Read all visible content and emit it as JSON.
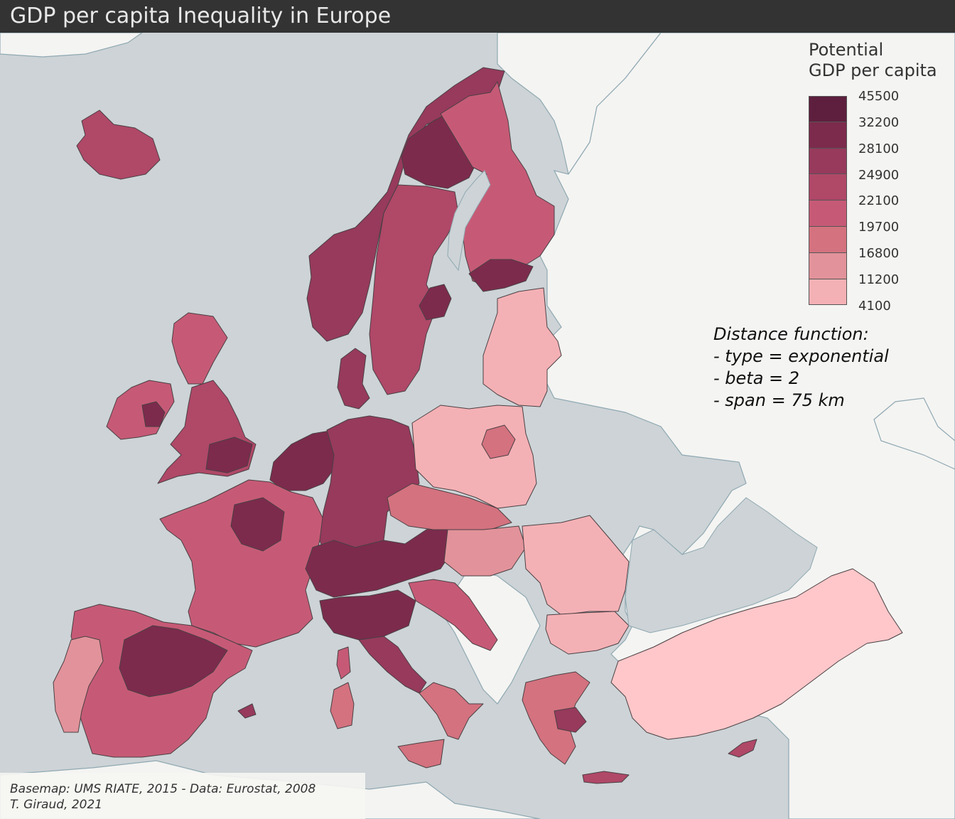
{
  "title": "GDP per capita Inequality in Europe",
  "legend": {
    "title_lines": [
      "Potential",
      "GDP per capita"
    ],
    "breaks": [
      "45500",
      "32200",
      "28100",
      "24900",
      "22100",
      "19700",
      "16800",
      "11200",
      "4100"
    ],
    "class_colors": [
      "#5e1f3e",
      "#7c2b4c",
      "#973a5c",
      "#b04868",
      "#c65a76",
      "#d4727f",
      "#e2929a",
      "#f4b1b5"
    ]
  },
  "colors": {
    "sea": "#cdd3d6",
    "land_no_data": "#f4f4f2",
    "coast": "#8fa8b2",
    "title_bar": "#333333",
    "border": "#4a4044"
  },
  "method_note": {
    "lines": [
      "Distance function:",
      "- type = exponential",
      "- beta = 2",
      "- span = 75 km"
    ]
  },
  "credits": {
    "lines": [
      "Basemap: UMS RIATE, 2015 - Data: Eurostat, 2008",
      "T. Giraud, 2021"
    ]
  }
}
